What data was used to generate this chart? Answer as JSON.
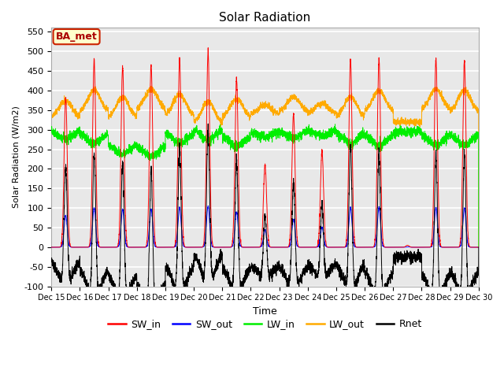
{
  "title": "Solar Radiation",
  "ylabel": "Solar Radiation (W/m2)",
  "xlabel": "Time",
  "ylim": [
    -100,
    560
  ],
  "yticks": [
    -100,
    -50,
    0,
    50,
    100,
    150,
    200,
    250,
    300,
    350,
    400,
    450,
    500,
    550
  ],
  "n_days": 15,
  "start_day": 15,
  "points_per_day": 288,
  "colors": {
    "SW_in": "#ff0000",
    "SW_out": "#0000ff",
    "LW_in": "#00ee00",
    "LW_out": "#ffaa00",
    "Rnet": "#000000"
  },
  "sw_peaks": [
    385,
    480,
    460,
    465,
    480,
    498,
    430,
    210,
    340,
    245,
    480,
    480,
    5,
    480,
    475
  ],
  "lw_out_base": [
    330,
    345,
    330,
    350,
    335,
    315,
    330,
    340,
    345,
    340,
    330,
    345,
    320,
    350,
    345
  ],
  "lw_in_base": [
    300,
    295,
    265,
    260,
    295,
    305,
    285,
    295,
    300,
    300,
    295,
    290,
    295,
    290,
    290
  ],
  "night_rnet": -25,
  "annotation_text": "BA_met",
  "annotation_facecolor": "#ffffcc",
  "annotation_edgecolor": "#cc2200",
  "annotation_textcolor": "#aa0000",
  "plot_bg_color": "#e8e8e8",
  "fig_bg_color": "#ffffff",
  "grid_color": "#ffffff",
  "figsize": [
    6.4,
    4.8
  ],
  "dpi": 100
}
